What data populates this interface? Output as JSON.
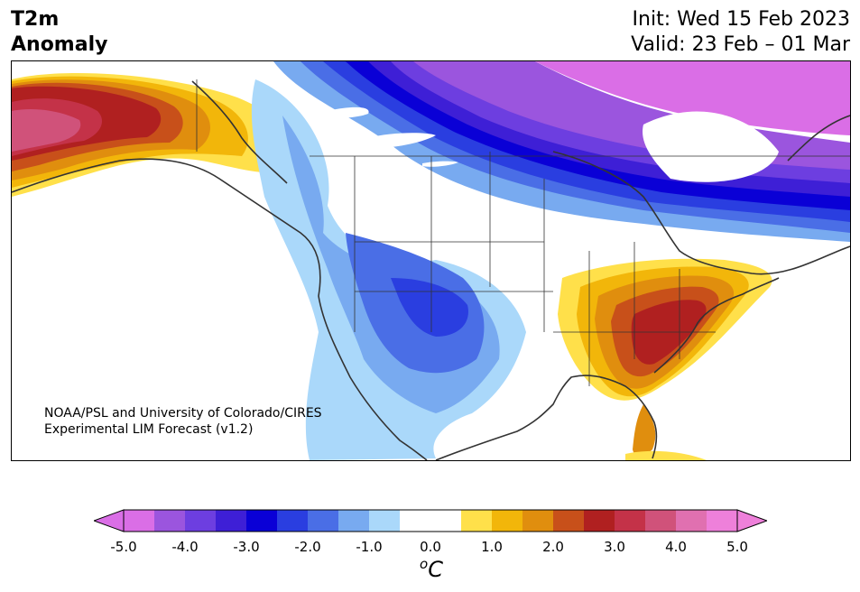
{
  "header": {
    "title_line1": "T2m",
    "title_line2": "Anomaly",
    "init_text": "Init: Wed 15 Feb 2023",
    "valid_text": "Valid: 23 Feb – 01 Mar"
  },
  "credit": {
    "line1": "NOAA/PSL and University of Colorado/CIRES",
    "line2": "Experimental LIM Forecast (v1.2)"
  },
  "colorbar": {
    "ticks": [
      "-5.0",
      "-4.0",
      "-3.0",
      "-2.0",
      "-1.0",
      "0.0",
      "1.0",
      "2.0",
      "3.0",
      "4.0",
      "5.0"
    ],
    "unit_base": "C",
    "unit_sup": "o",
    "extend": "both",
    "colors": [
      "#da6ee6",
      "#9b55de",
      "#6d3ee0",
      "#3e1fd6",
      "#0a00d6",
      "#2a3ee0",
      "#4a6ee6",
      "#78aaf0",
      "#aad8fa",
      "#ffffff",
      "#ffffff",
      "#ffe04a",
      "#f2b60a",
      "#e08e0e",
      "#c8501a",
      "#b02020",
      "#c43248",
      "#d0527a",
      "#e070b0",
      "#ee80da"
    ]
  },
  "map": {
    "region": "North America",
    "features": [
      "temperature anomaly shading",
      "coastlines",
      "state and province borders"
    ]
  }
}
